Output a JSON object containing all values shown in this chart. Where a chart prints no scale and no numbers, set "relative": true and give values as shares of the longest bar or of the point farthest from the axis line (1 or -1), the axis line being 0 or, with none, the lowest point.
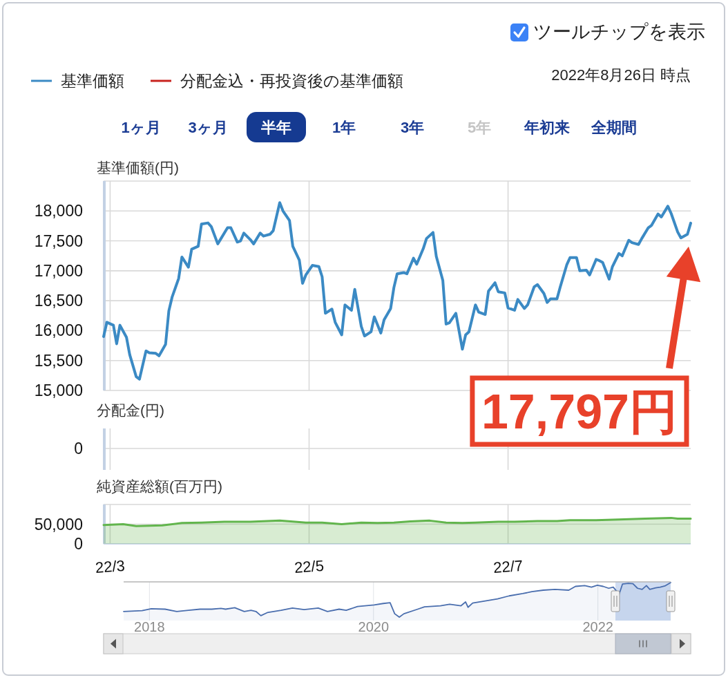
{
  "chart_data": [
    {
      "type": "line",
      "ylabel": "基準価額(円)",
      "subtitle": "2022年8月26日 時点",
      "legend": "top left",
      "grid": true,
      "tick_labels": "y",
      "xlim": [
        "2022-02-27",
        "2022-08-26"
      ],
      "xticks": [
        {
          "value": "2022-03-01",
          "label": null
        },
        {
          "value": "2022-05-01",
          "label": null
        },
        {
          "value": "2022-07-01",
          "label": null
        }
      ],
      "ylim": [
        15000,
        18500
      ],
      "yticks": [
        {
          "value": 15000,
          "label": "15,000"
        },
        {
          "value": 15500,
          "label": "15,500"
        },
        {
          "value": 16000,
          "label": "16,000"
        },
        {
          "value": 16500,
          "label": "16,500"
        },
        {
          "value": 17000,
          "label": "17,000"
        },
        {
          "value": 17500,
          "label": "17,500"
        },
        {
          "value": 18000,
          "label": "18,000"
        },
        {
          "value": 18500,
          "label": null
        }
      ],
      "x": [
        "2022-02-27",
        "2022-02-28",
        "2022-03-02",
        "2022-03-03",
        "2022-03-04",
        "2022-03-06",
        "2022-03-07",
        "2022-03-09",
        "2022-03-10",
        "2022-03-12",
        "2022-03-13",
        "2022-03-15",
        "2022-03-16",
        "2022-03-18",
        "2022-03-19",
        "2022-03-20",
        "2022-03-22",
        "2022-03-23",
        "2022-03-25",
        "2022-03-26",
        "2022-03-28",
        "2022-03-29",
        "2022-03-31",
        "2022-04-01",
        "2022-04-03",
        "2022-04-04",
        "2022-04-06",
        "2022-04-07",
        "2022-04-09",
        "2022-04-10",
        "2022-04-11",
        "2022-04-13",
        "2022-04-14",
        "2022-04-16",
        "2022-04-17",
        "2022-04-19",
        "2022-04-20",
        "2022-04-22",
        "2022-04-23",
        "2022-04-25",
        "2022-04-26",
        "2022-04-28",
        "2022-04-29",
        "2022-04-30",
        "2022-05-02",
        "2022-05-04",
        "2022-05-05",
        "2022-05-06",
        "2022-05-08",
        "2022-05-09",
        "2022-05-11",
        "2022-05-12",
        "2022-05-14",
        "2022-05-15",
        "2022-05-17",
        "2022-05-18",
        "2022-05-20",
        "2022-05-21",
        "2022-05-23",
        "2022-05-24",
        "2022-05-26",
        "2022-05-27",
        "2022-05-28",
        "2022-05-30",
        "2022-05-31",
        "2022-06-02",
        "2022-06-03",
        "2022-06-05",
        "2022-06-06",
        "2022-06-08",
        "2022-06-09",
        "2022-06-11",
        "2022-06-12",
        "2022-06-13",
        "2022-06-15",
        "2022-06-17",
        "2022-06-18",
        "2022-06-19",
        "2022-06-21",
        "2022-06-22",
        "2022-06-24",
        "2022-06-25",
        "2022-06-27",
        "2022-06-28",
        "2022-06-30",
        "2022-07-01",
        "2022-07-03",
        "2022-07-04",
        "2022-07-06",
        "2022-07-07",
        "2022-07-09",
        "2022-07-10",
        "2022-07-12",
        "2022-07-13",
        "2022-07-14",
        "2022-07-16",
        "2022-07-17",
        "2022-07-19",
        "2022-07-20",
        "2022-07-22",
        "2022-07-23",
        "2022-07-25",
        "2022-07-26",
        "2022-07-28",
        "2022-07-29",
        "2022-07-30",
        "2022-08-01",
        "2022-08-02",
        "2022-08-04",
        "2022-08-05",
        "2022-08-07",
        "2022-08-08",
        "2022-08-10",
        "2022-08-11",
        "2022-08-13",
        "2022-08-14",
        "2022-08-16",
        "2022-08-17",
        "2022-08-19",
        "2022-08-20",
        "2022-08-22",
        "2022-08-23",
        "2022-08-25",
        "2022-08-26"
      ],
      "series": [
        {
          "name": "基準価額",
          "color": "#3b8ac4",
          "values": [
            15900,
            16140,
            16090,
            15780,
            16090,
            15890,
            15600,
            15230,
            15190,
            15660,
            15630,
            15620,
            15580,
            15770,
            16330,
            16560,
            16870,
            17230,
            17060,
            17360,
            17410,
            17780,
            17800,
            17740,
            17450,
            17540,
            17720,
            17720,
            17480,
            17500,
            17630,
            17520,
            17450,
            17630,
            17580,
            17610,
            17670,
            18140,
            18000,
            17840,
            17410,
            17180,
            16790,
            16930,
            17090,
            17070,
            16900,
            16290,
            16360,
            16140,
            15930,
            16430,
            16340,
            16690,
            16070,
            15910,
            15980,
            16230,
            15960,
            16180,
            16370,
            16720,
            16950,
            16970,
            16950,
            17210,
            17110,
            17370,
            17540,
            17640,
            17240,
            16840,
            16110,
            16130,
            16290,
            15690,
            15930,
            15980,
            16430,
            16310,
            16270,
            16660,
            16800,
            16650,
            16630,
            16380,
            16340,
            16520,
            16370,
            16430,
            16730,
            16770,
            16620,
            16470,
            16530,
            16530,
            16730,
            17100,
            17220,
            17220,
            17000,
            17010,
            16930,
            17190,
            17170,
            17140,
            16860,
            17070,
            17290,
            17250,
            17510,
            17470,
            17440,
            17540,
            17720,
            17760,
            17950,
            17900,
            18080,
            17960,
            17650,
            17550,
            17610,
            17797
          ]
        },
        {
          "name": "分配金込・再投資後の基準価額",
          "color": "#c8231f",
          "values": [
            null,
            null,
            null,
            null,
            null,
            null,
            null,
            null,
            null,
            null,
            null,
            null,
            null,
            null,
            null,
            null,
            null,
            null,
            null,
            null,
            null,
            null,
            null,
            null,
            null,
            null,
            null,
            null,
            null,
            null,
            null,
            null,
            null,
            null,
            null,
            null,
            null,
            null,
            null,
            null,
            null,
            null,
            null,
            null,
            null,
            null,
            null,
            null,
            null,
            null,
            null,
            null,
            null,
            null,
            null,
            null,
            null,
            null,
            null,
            null,
            null,
            null,
            null,
            null,
            null,
            null,
            null,
            null,
            null,
            null,
            null,
            null,
            null,
            null,
            null,
            null,
            null,
            null,
            null,
            null,
            null,
            null,
            null,
            null,
            null,
            null,
            null,
            null,
            null,
            null,
            null,
            null,
            null,
            null,
            null,
            null,
            null,
            null,
            null,
            null,
            null,
            null,
            null,
            null,
            null,
            null,
            null,
            null,
            null,
            null,
            null,
            null,
            null,
            null,
            null,
            null,
            null,
            null,
            null,
            null,
            null,
            null,
            null,
            null
          ]
        }
      ],
      "annotations": [
        "ツールチップを表示",
        "1ヶ月",
        "3ヶ月",
        "半年",
        "1年",
        "3年",
        "5年",
        "年初来",
        "全期間",
        "17,797円"
      ]
    },
    {
      "type": "other",
      "ylabel": "分配金(円)",
      "annotations": [
        "0"
      ]
    },
    {
      "type": "area",
      "ylabel": "純資産総額(百万円)",
      "grid": true,
      "xlim": [
        "2022-02-27",
        "2022-08-26"
      ],
      "xticks": [
        {
          "value": "2022-03-01",
          "label": "22/3"
        },
        {
          "value": "2022-05-01",
          "label": "22/5"
        },
        {
          "value": "2022-07-01",
          "label": "22/7"
        }
      ],
      "ylim": [
        0,
        100000
      ],
      "yticks": [
        0,
        {
          "value": 50000,
          "label": "50,000"
        },
        {
          "value": 100000,
          "label": null
        }
      ],
      "x": [
        "2022-02-27",
        "2022-03-05",
        "2022-03-09",
        "2022-03-17",
        "2022-03-23",
        "2022-03-29",
        "2022-04-05",
        "2022-04-13",
        "2022-04-22",
        "2022-04-30",
        "2022-05-05",
        "2022-05-11",
        "2022-05-17",
        "2022-05-22",
        "2022-05-27",
        "2022-06-01",
        "2022-06-07",
        "2022-06-12",
        "2022-06-17",
        "2022-06-21",
        "2022-06-28",
        "2022-07-03",
        "2022-07-10",
        "2022-07-16",
        "2022-07-20",
        "2022-07-28",
        "2022-08-04",
        "2022-08-12",
        "2022-08-20",
        "2022-08-22",
        "2022-08-26"
      ],
      "series": [
        {
          "color": "#62b54d",
          "values": [
            48000,
            50000,
            45000,
            47000,
            53000,
            54000,
            56000,
            56000,
            59000,
            54000,
            54000,
            50000,
            54000,
            53000,
            54000,
            57000,
            59000,
            54000,
            53000,
            54000,
            56000,
            56000,
            58000,
            58000,
            60000,
            60000,
            62000,
            64000,
            66000,
            64000,
            64000
          ]
        }
      ]
    },
    {
      "type": "area",
      "relative": true,
      "grid": "x",
      "tick_labels": "x",
      "xlim": [
        "2017-10-09",
        "2022-08-26"
      ],
      "xticks": [
        {
          "value": "2018-01-01",
          "label": "2018"
        },
        {
          "value": "2020-01-01",
          "label": "2020"
        },
        {
          "value": "2022-01-01",
          "label": "2022"
        }
      ],
      "bands": [
        {
          "axis": "x",
          "from": "2022-02-27",
          "to": "2022-08-26",
          "color": "#cfdcf2"
        }
      ],
      "x": [
        "2017-10-09",
        "2017-12-08",
        "2018-01-07",
        "2018-02-21",
        "2018-03-31",
        "2018-05-08",
        "2018-06-15",
        "2018-07-23",
        "2018-08-22",
        "2018-09-06",
        "2018-10-06",
        "2018-11-06",
        "2018-11-28",
        "2018-12-14",
        "2018-12-30",
        "2019-01-20",
        "2019-03-06",
        "2019-04-12",
        "2019-05-20",
        "2019-07-05",
        "2019-08-04",
        "2019-09-11",
        "2019-10-04",
        "2019-11-10",
        "2020-01-03",
        "2020-02-02",
        "2020-02-24",
        "2020-03-10",
        "2020-03-25",
        "2020-04-09",
        "2020-05-24",
        "2020-06-15",
        "2020-08-06",
        "2020-09-05",
        "2020-10-12",
        "2020-10-27",
        "2020-11-04",
        "2020-11-19",
        "2021-01-02",
        "2021-02-08",
        "2021-03-18",
        "2021-05-01",
        "2021-05-31",
        "2021-07-07",
        "2021-08-14",
        "2021-09-28",
        "2021-10-20",
        "2021-11-19",
        "2021-12-11",
        "2021-12-30",
        "2022-01-18",
        "2022-02-05",
        "2022-02-20",
        "2022-03-11",
        "2022-03-22",
        "2022-04-10",
        "2022-04-25",
        "2022-05-10",
        "2022-05-25",
        "2022-06-08",
        "2022-06-19",
        "2022-07-08",
        "2022-07-23",
        "2022-08-07",
        "2022-08-26"
      ],
      "series": [
        {
          "color": "#4a6eae",
          "values": [
            0.24,
            0.26,
            0.31,
            0.3,
            0.24,
            0.27,
            0.3,
            0.3,
            0.32,
            0.3,
            0.34,
            0.24,
            0.27,
            0.24,
            0.13,
            0.21,
            0.27,
            0.33,
            0.29,
            0.33,
            0.24,
            0.3,
            0.27,
            0.37,
            0.41,
            0.45,
            0.47,
            0.18,
            0.09,
            0.18,
            0.3,
            0.36,
            0.39,
            0.43,
            0.39,
            0.49,
            0.35,
            0.46,
            0.52,
            0.57,
            0.65,
            0.71,
            0.76,
            0.8,
            0.82,
            0.8,
            0.9,
            0.92,
            0.88,
            0.93,
            0.9,
            0.85,
            0.88,
            0.69,
            0.96,
            0.98,
            0.97,
            0.85,
            0.82,
            0.92,
            0.82,
            0.86,
            0.88,
            0.91,
            1
          ]
        }
      ]
    }
  ]
}
